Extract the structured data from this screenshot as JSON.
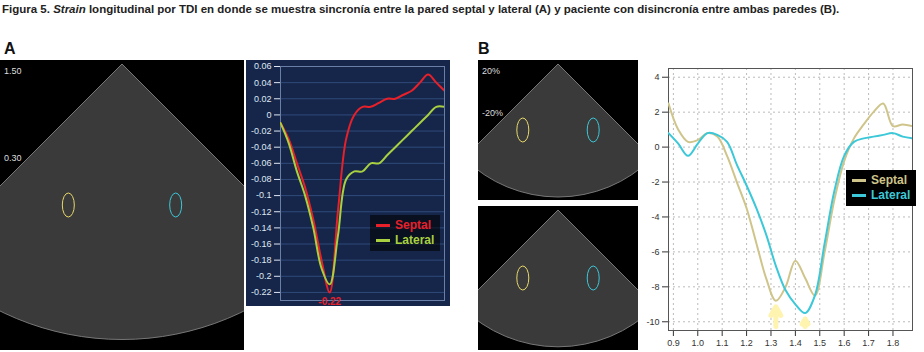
{
  "caption": {
    "label": "Figura 5.",
    "emphasis": "Strain",
    "text": "longitudinal por TDI en donde se muestra sincronía entre la pared septal y lateral (A) y paciente con disincronía entre ambas paredes (B)."
  },
  "chart_data": [
    {
      "type": "line",
      "title": "A",
      "x": [
        0,
        5,
        10,
        15,
        20,
        25,
        30,
        35,
        40,
        45,
        50,
        55,
        60,
        65,
        70,
        75,
        80,
        85,
        90,
        95,
        100
      ],
      "series": [
        {
          "name": "Septal",
          "color": "#e8202a",
          "values": [
            -0.01,
            -0.03,
            -0.06,
            -0.09,
            -0.13,
            -0.18,
            -0.22,
            -0.12,
            -0.03,
            0.0,
            0.01,
            0.01,
            0.015,
            0.02,
            0.02,
            0.025,
            0.03,
            0.04,
            0.05,
            0.04,
            0.03
          ]
        },
        {
          "name": "Lateral",
          "color": "#a8d040",
          "values": [
            -0.01,
            -0.035,
            -0.07,
            -0.1,
            -0.14,
            -0.19,
            -0.21,
            -0.15,
            -0.08,
            -0.07,
            -0.07,
            -0.06,
            -0.06,
            -0.05,
            -0.04,
            -0.03,
            -0.02,
            -0.01,
            0.0,
            0.01,
            0.01
          ]
        }
      ],
      "xlim": [
        0,
        100
      ],
      "ylim": [
        -0.23,
        0.06
      ],
      "yticks": [
        0.06,
        0.04,
        0.02,
        0,
        -0.02,
        -0.04,
        -0.06,
        -0.08,
        -0.1,
        -0.12,
        -0.14,
        -0.16,
        -0.18,
        -0.2,
        -0.22
      ],
      "grid": true,
      "legend": "right",
      "tick_labels": "y",
      "annotations": [
        {
          "text": "-0.22",
          "x": 30,
          "y": -0.22
        }
      ],
      "echo_texts": [
        "1.50",
        "0.30"
      ]
    },
    {
      "type": "line",
      "title": "B",
      "x": [
        0.88,
        0.92,
        0.96,
        1.0,
        1.04,
        1.08,
        1.12,
        1.16,
        1.2,
        1.24,
        1.28,
        1.32,
        1.36,
        1.4,
        1.44,
        1.48,
        1.52,
        1.56,
        1.6,
        1.64,
        1.68,
        1.72,
        1.76,
        1.8,
        1.84,
        1.88
      ],
      "series": [
        {
          "name": "Septal",
          "color": "#cfc48a",
          "values": [
            2.5,
            1.0,
            0.3,
            0.4,
            0.8,
            0.6,
            -0.5,
            -2,
            -3.5,
            -5.5,
            -7.5,
            -8.8,
            -8,
            -6.5,
            -7.5,
            -8.5,
            -6,
            -3,
            -0.8,
            0.5,
            1.3,
            2,
            2.5,
            1.2,
            1.3,
            1.2
          ]
        },
        {
          "name": "Lateral",
          "color": "#3cc8d8",
          "values": [
            0.8,
            0.2,
            -0.5,
            0.2,
            0.8,
            0.7,
            0.3,
            -1,
            -2.2,
            -3.5,
            -5,
            -6.8,
            -8.2,
            -9,
            -9.5,
            -8.5,
            -5.5,
            -2.5,
            -0.5,
            0.3,
            0.5,
            0.6,
            0.7,
            0.8,
            0.6,
            0.5
          ]
        }
      ],
      "xlim": [
        0.88,
        1.88
      ],
      "xticks": [
        0.9,
        {
          "value": 1,
          "label": "1.0"
        },
        1.1,
        1.2,
        1.3,
        1.4,
        1.5,
        1.6,
        1.7,
        1.8
      ],
      "ylim": [
        -10.5,
        4.5
      ],
      "yticks": [
        -10,
        -8,
        -6,
        -4,
        -2,
        0,
        2,
        4
      ],
      "grid": true,
      "legend": "top-right",
      "echo_texts": [
        "20%",
        "-20%"
      ]
    }
  ]
}
